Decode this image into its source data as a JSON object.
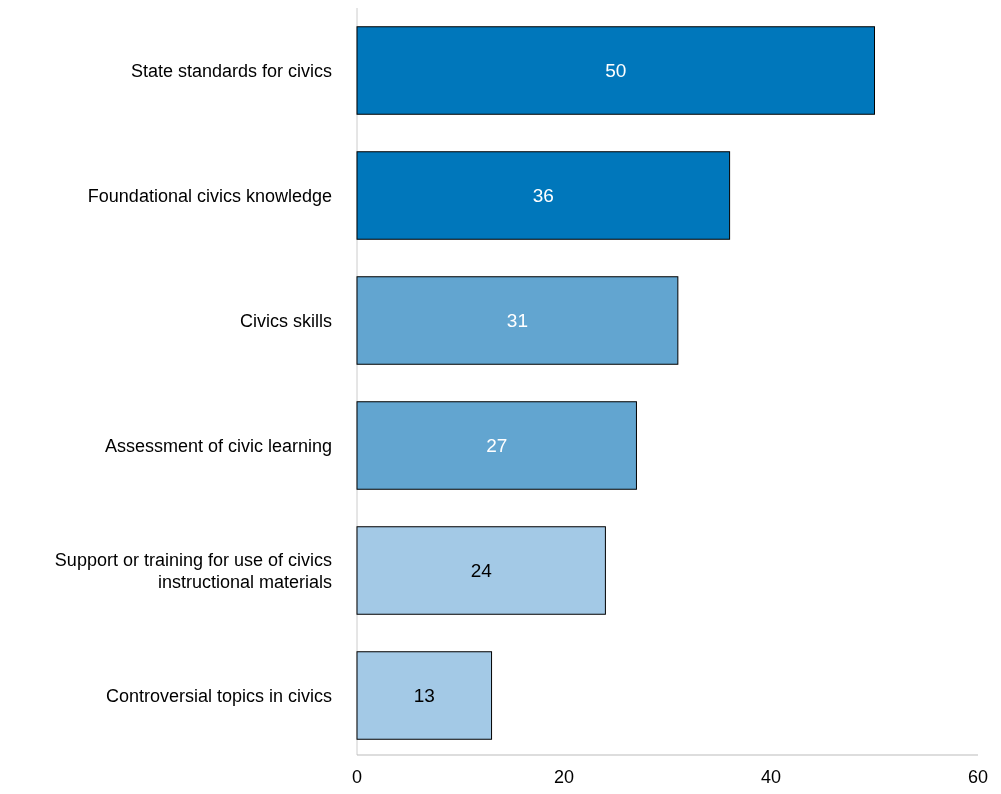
{
  "chart_data": {
    "type": "bar",
    "orientation": "horizontal",
    "categories": [
      "State standards for civics",
      "Foundational civics knowledge",
      "Civics skills",
      "Assessment of civic learning",
      "Support or training for use of civics instructional materials",
      "Controversial topics in civics"
    ],
    "values": [
      50,
      36,
      31,
      27,
      24,
      13
    ],
    "colors": [
      "#0077bb",
      "#0077bb",
      "#62a5d0",
      "#62a5d0",
      "#a3c9e6",
      "#a3c9e6"
    ],
    "xlim": [
      0,
      60
    ],
    "xticks": [
      0,
      20,
      40,
      60
    ],
    "data_labels": true,
    "grid": false
  }
}
